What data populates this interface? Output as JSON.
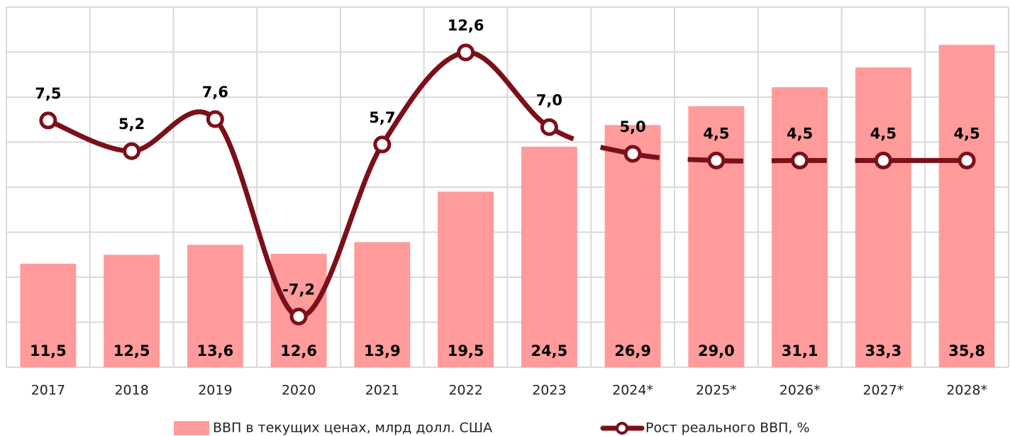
{
  "chart_data": {
    "type": "bar-line",
    "categories": [
      "2017",
      "2018",
      "2019",
      "2020",
      "2021",
      "2022",
      "2023",
      "2024*",
      "2025*",
      "2026*",
      "2027*",
      "2028*"
    ],
    "series": [
      {
        "name": "ВВП в текущих ценах, млрд долл. США",
        "color": "#ff9b9b",
        "values": [
          11.5,
          12.5,
          13.6,
          12.6,
          13.9,
          19.5,
          24.5,
          26.9,
          29.0,
          31.1,
          33.3,
          35.8
        ],
        "value_labels": [
          "11,5",
          "12,5",
          "13,6",
          "12,6",
          "13,9",
          "19,5",
          "24,5",
          "26,9",
          "29,0",
          "31,1",
          "33,3",
          "35,8"
        ]
      },
      {
        "name": "Рост реального ВВП, %",
        "color": "#7b0f1a",
        "axis": "y2",
        "values": [
          7.5,
          5.2,
          7.6,
          -7.2,
          5.7,
          12.6,
          7.0,
          5.0,
          4.5,
          4.5,
          4.5,
          4.5
        ],
        "value_labels": [
          "7,5",
          "5,2",
          "7,6",
          "-7,2",
          "5,7",
          "12,6",
          "7,0",
          "5,0",
          "4,5",
          "4,5",
          "4,5",
          "4,5"
        ]
      }
    ],
    "ylim": [
      0,
      40
    ],
    "yticks": [
      0,
      5,
      10,
      15,
      20,
      25,
      30,
      35,
      40
    ],
    "y2lim": [
      -11,
      16
    ],
    "grid": true
  }
}
